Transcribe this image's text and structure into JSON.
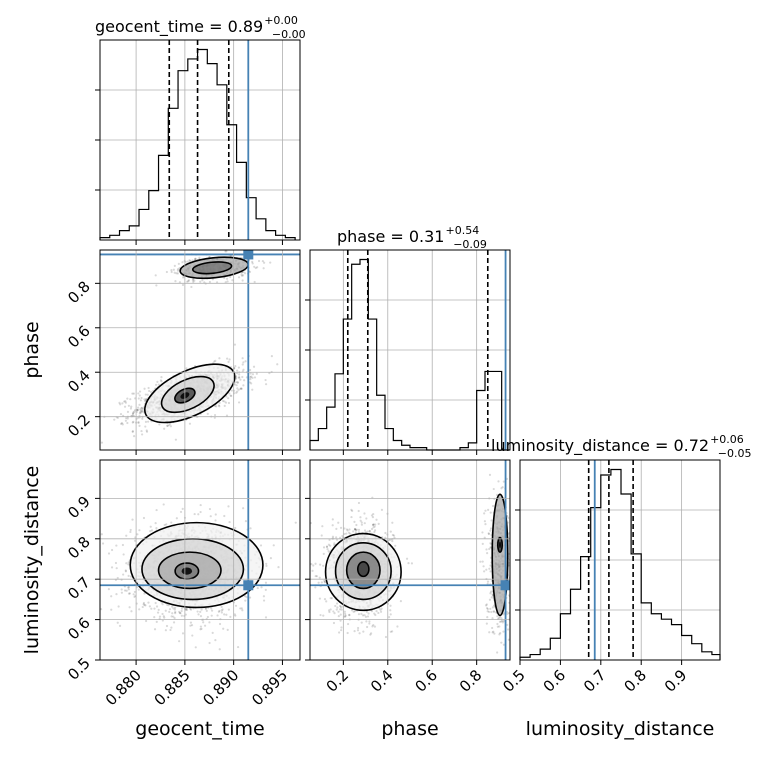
{
  "figure": {
    "type": "corner",
    "truth_color": "#4682b4",
    "hist_color": "#000000",
    "grid_color": "#b0b0b0"
  },
  "chart_data": {
    "type": "corner",
    "parameters": [
      "geocent_time",
      "phase",
      "luminosity_distance"
    ],
    "titles": [
      {
        "name": "geocent_time",
        "median": "0.89",
        "plus": "+0.00",
        "minus": "−0.00"
      },
      {
        "name": "phase",
        "median": "0.31",
        "plus": "+0.54",
        "minus": "−0.09"
      },
      {
        "name": "luminosity_distance",
        "median": "0.72",
        "plus": "+0.06",
        "minus": "−0.05"
      }
    ],
    "ranges": [
      [
        0.8763,
        0.8968
      ],
      [
        0.05,
        0.95
      ],
      [
        0.5,
        0.995
      ]
    ],
    "ticks": {
      "geocent_time": {
        "values": [
          0.88,
          0.885,
          0.89,
          0.895
        ],
        "labels": [
          "0.880",
          "0.885",
          "0.890",
          "0.895"
        ]
      },
      "phase": {
        "values": [
          0.2,
          0.4,
          0.6,
          0.8
        ],
        "labels": [
          "0.2",
          "0.4",
          "0.6",
          "0.8"
        ]
      },
      "luminosity_distance_x": {
        "values": [
          0.5,
          0.6,
          0.7,
          0.8,
          0.9
        ],
        "labels": [
          "0.5",
          "0.6",
          "0.7",
          "0.8",
          "0.9"
        ]
      },
      "luminosity_distance_y": {
        "values": [
          0.5,
          0.6,
          0.7,
          0.8,
          0.9
        ],
        "labels": [
          "0.5",
          "0.6",
          "0.7",
          "0.8",
          "0.9"
        ]
      }
    },
    "truths": [
      0.8915,
      0.93,
      0.685
    ],
    "quantiles": [
      [
        0.8834,
        0.8863,
        0.8895
      ],
      [
        0.22,
        0.31,
        0.85
      ],
      [
        0.67,
        0.72,
        0.78
      ]
    ],
    "histograms": [
      {
        "bin_edges": [
          0.8763,
          0.8773,
          0.8783,
          0.8793,
          0.8803,
          0.8813,
          0.8823,
          0.8833,
          0.8843,
          0.8853,
          0.8863,
          0.8873,
          0.8883,
          0.8893,
          0.8903,
          0.8913,
          0.8923,
          0.8933,
          0.8943,
          0.8953,
          0.8963
        ],
        "counts": [
          1,
          2,
          4,
          6,
          13,
          21,
          36,
          56,
          72,
          77,
          81,
          75,
          66,
          49,
          33,
          18,
          9,
          4,
          2,
          1
        ]
      },
      {
        "bin_edges": [
          0.05,
          0.0875,
          0.125,
          0.1625,
          0.2,
          0.2375,
          0.275,
          0.3125,
          0.35,
          0.3875,
          0.425,
          0.4625,
          0.5,
          0.5375,
          0.575,
          0.6125,
          0.65,
          0.6875,
          0.725,
          0.7625,
          0.8,
          0.8375,
          0.875,
          0.9125,
          0.95
        ],
        "counts": [
          4,
          9,
          18,
          32,
          55,
          78,
          80,
          55,
          23,
          9,
          4,
          2,
          1,
          1,
          0,
          0,
          0,
          0,
          1,
          3,
          25,
          33,
          33,
          0
        ]
      },
      {
        "bin_edges": [
          0.5,
          0.525,
          0.55,
          0.575,
          0.6,
          0.625,
          0.65,
          0.675,
          0.7,
          0.725,
          0.75,
          0.775,
          0.8,
          0.825,
          0.85,
          0.875,
          0.9,
          0.925,
          0.95,
          0.975,
          0.995
        ],
        "counts": [
          1,
          2,
          4,
          8,
          17,
          26,
          38,
          56,
          68,
          70,
          61,
          39,
          21,
          17,
          15,
          13,
          9,
          6,
          3,
          2
        ]
      }
    ],
    "scatter_2d": [
      {
        "x_param": "geocent_time",
        "y_param": "phase",
        "clusters": [
          {
            "center": [
              0.8855,
              0.3
            ],
            "sigma": [
              0.0028,
              0.06
            ],
            "rho": 0.6,
            "n": 1400
          },
          {
            "center": [
              0.888,
              0.87
            ],
            "sigma": [
              0.002,
              0.03
            ],
            "rho": 0.3,
            "n": 420
          }
        ],
        "contours": [
          {
            "center": [
              0.885,
              0.295
            ],
            "semi_axes": [
              0.0011,
              0.028
            ],
            "angle": 0.45
          },
          {
            "center": [
              0.8853,
              0.3
            ],
            "semi_axes": [
              0.0029,
              0.065
            ],
            "angle": 0.45
          },
          {
            "center": [
              0.8855,
              0.305
            ],
            "semi_axes": [
              0.005,
              0.1
            ],
            "angle": 0.45
          },
          {
            "center": [
              0.8878,
              0.87
            ],
            "semi_axes": [
              0.002,
              0.025
            ],
            "angle": 0.1
          },
          {
            "center": [
              0.888,
              0.87
            ],
            "semi_axes": [
              0.0035,
              0.045
            ],
            "angle": 0.1
          }
        ]
      },
      {
        "x_param": "geocent_time",
        "y_param": "luminosity_distance",
        "clusters": [
          {
            "center": [
              0.8855,
              0.72
            ],
            "sigma": [
              0.003,
              0.055
            ],
            "rho": 0.0,
            "n": 1700
          }
        ],
        "contours": [
          {
            "center": [
              0.8852,
              0.72
            ],
            "semi_axes": [
              0.0012,
              0.02
            ],
            "angle": 0.0
          },
          {
            "center": [
              0.8855,
              0.722
            ],
            "semi_axes": [
              0.0032,
              0.045
            ],
            "angle": 0.0
          },
          {
            "center": [
              0.8858,
              0.725
            ],
            "semi_axes": [
              0.0052,
              0.075
            ],
            "angle": 0.0
          },
          {
            "center": [
              0.8862,
              0.735
            ],
            "semi_axes": [
              0.0068,
              0.105
            ],
            "angle": 0.0
          }
        ]
      },
      {
        "x_param": "phase",
        "y_param": "luminosity_distance",
        "clusters": [
          {
            "center": [
              0.28,
              0.72
            ],
            "sigma": [
              0.07,
              0.055
            ],
            "rho": 0.0,
            "n": 1500
          },
          {
            "center": [
              0.9,
              0.74
            ],
            "sigma": [
              0.03,
              0.09
            ],
            "rho": 0.0,
            "n": 420
          }
        ],
        "contours": [
          {
            "center": [
              0.29,
              0.725
            ],
            "semi_axes": [
              0.025,
              0.018
            ],
            "angle": 0.0
          },
          {
            "center": [
              0.29,
              0.722
            ],
            "semi_axes": [
              0.075,
              0.045
            ],
            "angle": 0.0
          },
          {
            "center": [
              0.29,
              0.72
            ],
            "semi_axes": [
              0.125,
              0.07
            ],
            "angle": 0.0
          },
          {
            "center": [
              0.29,
              0.718
            ],
            "semi_axes": [
              0.17,
              0.095
            ],
            "angle": 0.0
          },
          {
            "center": [
              0.905,
              0.785
            ],
            "semi_axes": [
              0.01,
              0.018
            ],
            "angle": 0.0
          },
          {
            "center": [
              0.905,
              0.76
            ],
            "semi_axes": [
              0.035,
              0.15
            ],
            "angle": 0.0
          }
        ]
      }
    ]
  }
}
